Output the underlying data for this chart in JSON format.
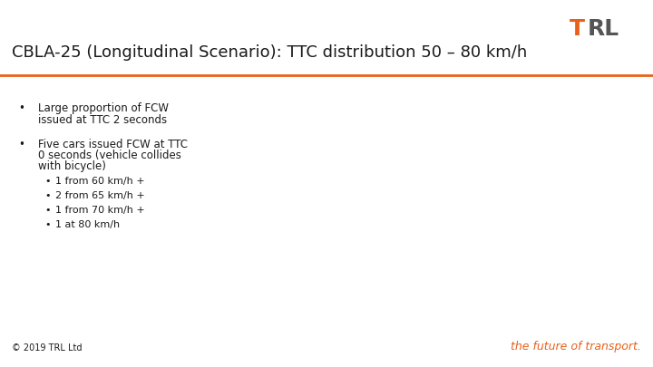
{
  "title": "CBLA-25 (Longitudinal Scenario): TTC distribution 50 – 80 km/h",
  "title_color": "#1a1a1a",
  "title_fontsize": 13,
  "accent_color": "#E8611A",
  "bg_color": "#FFFFFF",
  "footer_left": "© 2019 TRL Ltd",
  "footer_right": "the future of transport.",
  "footer_color": "#E8611A",
  "separator_color": "#E8611A",
  "bullet1_line1": "Large proportion of FCW",
  "bullet1_line2": "issued at TTC 2 seconds",
  "bullet2_line1": "Five cars issued FCW at TTC",
  "bullet2_line2": "0 seconds (vehicle collides",
  "bullet2_line3": "with bicycle)",
  "bullet2_sub": [
    "1 from 60 km/h +",
    "2 from 65 km/h +",
    "1 from 70 km/h +",
    "1 at 80 km/h"
  ],
  "text_color": "#1a1a1a",
  "text_fontsize": 8.5,
  "sub_fontsize": 8.0,
  "trl_T_color": "#E8611A",
  "trl_RL_color": "#555555"
}
